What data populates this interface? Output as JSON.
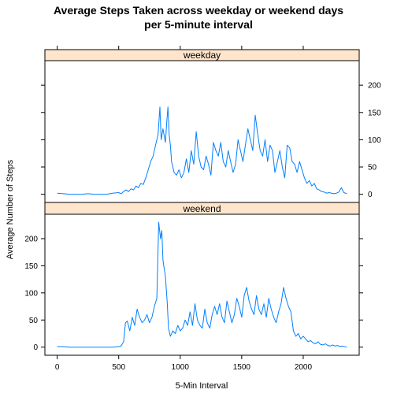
{
  "chart_data": {
    "type": "line",
    "title_line1": "Average Steps Taken across weekday or weekend days",
    "title_line2": "per 5-minute interval",
    "xlabel": "5-Min Interval",
    "ylabel": "Average Number of Steps",
    "xlim": [
      -100,
      2455
    ],
    "ylim": [
      -15,
      245
    ],
    "x_ticks": [
      0,
      500,
      1000,
      1500,
      2000
    ],
    "y_ticks": [
      0,
      50,
      100,
      150,
      200
    ],
    "series": [
      {
        "name": "weekday",
        "points": [
          [
            0,
            2
          ],
          [
            50,
            1
          ],
          [
            100,
            0
          ],
          [
            150,
            0
          ],
          [
            200,
            0
          ],
          [
            250,
            1
          ],
          [
            300,
            0
          ],
          [
            350,
            0
          ],
          [
            400,
            0
          ],
          [
            450,
            2
          ],
          [
            500,
            3
          ],
          [
            520,
            1
          ],
          [
            540,
            5
          ],
          [
            560,
            8
          ],
          [
            580,
            5
          ],
          [
            600,
            10
          ],
          [
            620,
            8
          ],
          [
            640,
            15
          ],
          [
            660,
            12
          ],
          [
            680,
            20
          ],
          [
            700,
            18
          ],
          [
            720,
            30
          ],
          [
            740,
            45
          ],
          [
            760,
            60
          ],
          [
            780,
            70
          ],
          [
            800,
            90
          ],
          [
            820,
            110
          ],
          [
            835,
            160
          ],
          [
            845,
            100
          ],
          [
            860,
            120
          ],
          [
            880,
            95
          ],
          [
            890,
            130
          ],
          [
            900,
            160
          ],
          [
            910,
            110
          ],
          [
            920,
            90
          ],
          [
            930,
            60
          ],
          [
            950,
            40
          ],
          [
            970,
            35
          ],
          [
            990,
            45
          ],
          [
            1010,
            30
          ],
          [
            1030,
            40
          ],
          [
            1050,
            65
          ],
          [
            1070,
            40
          ],
          [
            1090,
            80
          ],
          [
            1110,
            55
          ],
          [
            1130,
            115
          ],
          [
            1150,
            70
          ],
          [
            1170,
            50
          ],
          [
            1190,
            45
          ],
          [
            1210,
            70
          ],
          [
            1230,
            55
          ],
          [
            1250,
            35
          ],
          [
            1270,
            95
          ],
          [
            1290,
            80
          ],
          [
            1310,
            70
          ],
          [
            1330,
            95
          ],
          [
            1350,
            60
          ],
          [
            1370,
            50
          ],
          [
            1390,
            80
          ],
          [
            1410,
            60
          ],
          [
            1430,
            40
          ],
          [
            1450,
            55
          ],
          [
            1470,
            100
          ],
          [
            1490,
            80
          ],
          [
            1510,
            60
          ],
          [
            1530,
            90
          ],
          [
            1550,
            120
          ],
          [
            1570,
            100
          ],
          [
            1590,
            80
          ],
          [
            1610,
            145
          ],
          [
            1630,
            110
          ],
          [
            1650,
            80
          ],
          [
            1670,
            70
          ],
          [
            1690,
            100
          ],
          [
            1710,
            60
          ],
          [
            1730,
            90
          ],
          [
            1750,
            80
          ],
          [
            1770,
            40
          ],
          [
            1790,
            60
          ],
          [
            1810,
            80
          ],
          [
            1830,
            50
          ],
          [
            1850,
            30
          ],
          [
            1870,
            90
          ],
          [
            1890,
            85
          ],
          [
            1910,
            60
          ],
          [
            1930,
            55
          ],
          [
            1950,
            40
          ],
          [
            1970,
            60
          ],
          [
            1990,
            45
          ],
          [
            2010,
            30
          ],
          [
            2030,
            20
          ],
          [
            2050,
            25
          ],
          [
            2070,
            15
          ],
          [
            2090,
            20
          ],
          [
            2110,
            10
          ],
          [
            2130,
            8
          ],
          [
            2150,
            5
          ],
          [
            2170,
            4
          ],
          [
            2190,
            2
          ],
          [
            2210,
            3
          ],
          [
            2230,
            2
          ],
          [
            2250,
            1
          ],
          [
            2270,
            2
          ],
          [
            2290,
            4
          ],
          [
            2310,
            12
          ],
          [
            2330,
            3
          ],
          [
            2355,
            1
          ]
        ]
      },
      {
        "name": "weekend",
        "points": [
          [
            0,
            1
          ],
          [
            50,
            1
          ],
          [
            100,
            0
          ],
          [
            150,
            0
          ],
          [
            200,
            0
          ],
          [
            250,
            0
          ],
          [
            300,
            0
          ],
          [
            350,
            0
          ],
          [
            400,
            0
          ],
          [
            450,
            0
          ],
          [
            500,
            1
          ],
          [
            520,
            2
          ],
          [
            540,
            10
          ],
          [
            555,
            45
          ],
          [
            570,
            48
          ],
          [
            590,
            30
          ],
          [
            610,
            55
          ],
          [
            630,
            40
          ],
          [
            650,
            70
          ],
          [
            670,
            55
          ],
          [
            690,
            45
          ],
          [
            710,
            50
          ],
          [
            730,
            60
          ],
          [
            750,
            45
          ],
          [
            770,
            55
          ],
          [
            790,
            75
          ],
          [
            810,
            90
          ],
          [
            825,
            230
          ],
          [
            840,
            200
          ],
          [
            850,
            215
          ],
          [
            860,
            160
          ],
          [
            880,
            130
          ],
          [
            895,
            80
          ],
          [
            905,
            35
          ],
          [
            920,
            20
          ],
          [
            940,
            30
          ],
          [
            960,
            25
          ],
          [
            980,
            40
          ],
          [
            1000,
            30
          ],
          [
            1020,
            35
          ],
          [
            1040,
            50
          ],
          [
            1060,
            40
          ],
          [
            1080,
            65
          ],
          [
            1100,
            40
          ],
          [
            1120,
            80
          ],
          [
            1140,
            50
          ],
          [
            1160,
            40
          ],
          [
            1180,
            35
          ],
          [
            1200,
            70
          ],
          [
            1220,
            45
          ],
          [
            1240,
            35
          ],
          [
            1260,
            60
          ],
          [
            1280,
            75
          ],
          [
            1300,
            60
          ],
          [
            1320,
            80
          ],
          [
            1340,
            55
          ],
          [
            1360,
            45
          ],
          [
            1380,
            85
          ],
          [
            1400,
            65
          ],
          [
            1420,
            45
          ],
          [
            1440,
            60
          ],
          [
            1460,
            90
          ],
          [
            1480,
            75
          ],
          [
            1500,
            55
          ],
          [
            1520,
            95
          ],
          [
            1540,
            110
          ],
          [
            1560,
            85
          ],
          [
            1580,
            70
          ],
          [
            1600,
            60
          ],
          [
            1620,
            95
          ],
          [
            1640,
            70
          ],
          [
            1660,
            60
          ],
          [
            1680,
            80
          ],
          [
            1700,
            55
          ],
          [
            1720,
            90
          ],
          [
            1740,
            70
          ],
          [
            1760,
            55
          ],
          [
            1780,
            45
          ],
          [
            1800,
            65
          ],
          [
            1820,
            80
          ],
          [
            1840,
            110
          ],
          [
            1860,
            90
          ],
          [
            1880,
            75
          ],
          [
            1900,
            65
          ],
          [
            1920,
            30
          ],
          [
            1940,
            20
          ],
          [
            1960,
            25
          ],
          [
            1980,
            15
          ],
          [
            2000,
            20
          ],
          [
            2020,
            15
          ],
          [
            2040,
            10
          ],
          [
            2060,
            12
          ],
          [
            2080,
            8
          ],
          [
            2100,
            6
          ],
          [
            2120,
            10
          ],
          [
            2140,
            5
          ],
          [
            2160,
            4
          ],
          [
            2180,
            6
          ],
          [
            2200,
            3
          ],
          [
            2220,
            2
          ],
          [
            2240,
            4
          ],
          [
            2260,
            2
          ],
          [
            2280,
            3
          ],
          [
            2300,
            1
          ],
          [
            2320,
            2
          ],
          [
            2355,
            0
          ]
        ]
      }
    ],
    "colors": {
      "line": "#0080ff",
      "strip": "#ffe5cc",
      "frame": "#000000"
    }
  }
}
